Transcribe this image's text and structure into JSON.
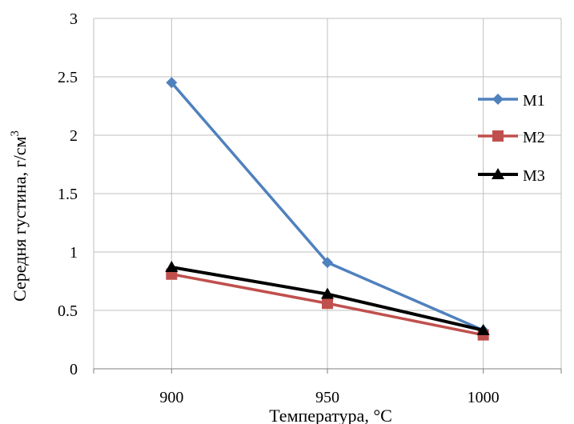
{
  "chart_data": {
    "type": "line",
    "title": "",
    "xlabel": "Температура, °C",
    "ylabel": "Середня густина, г/см3",
    "ylabel_parts": {
      "main": "Середня густина, г/см",
      "superscript": "3"
    },
    "x": [
      900,
      950,
      1000
    ],
    "x_tick_labels": [
      "900",
      "950",
      "1000"
    ],
    "xlim": [
      875,
      1025
    ],
    "ylim": [
      0,
      3
    ],
    "y_ticks": [
      0,
      0.5,
      1,
      1.5,
      2,
      2.5,
      3
    ],
    "y_tick_labels": [
      "0",
      "0.5",
      "1",
      "1.5",
      "2",
      "2.5",
      "3"
    ],
    "grid": true,
    "legend_position": "right",
    "series": [
      {
        "name": "M1",
        "values": [
          2.45,
          0.91,
          0.33
        ],
        "color": "#4F81BD",
        "marker": "diamond"
      },
      {
        "name": "M2",
        "values": [
          0.81,
          0.56,
          0.29
        ],
        "color": "#C0504D",
        "marker": "square"
      },
      {
        "name": "M3",
        "values": [
          0.87,
          0.64,
          0.33
        ],
        "color": "#000000",
        "marker": "triangle"
      }
    ]
  }
}
